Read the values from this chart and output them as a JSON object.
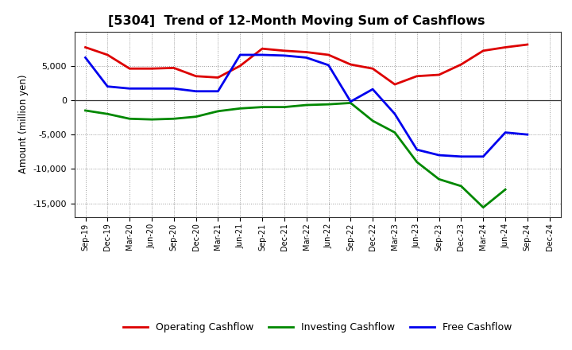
{
  "title": "[5304]  Trend of 12-Month Moving Sum of Cashflows",
  "ylabel": "Amount (million yen)",
  "background_color": "#ffffff",
  "x_labels": [
    "Sep-19",
    "Dec-19",
    "Mar-20",
    "Jun-20",
    "Sep-20",
    "Dec-20",
    "Mar-21",
    "Jun-21",
    "Sep-21",
    "Dec-21",
    "Mar-22",
    "Jun-22",
    "Sep-22",
    "Dec-22",
    "Mar-23",
    "Jun-23",
    "Sep-23",
    "Dec-23",
    "Mar-24",
    "Jun-24",
    "Sep-24",
    "Dec-24"
  ],
  "operating": [
    7700,
    6600,
    4600,
    4600,
    4700,
    3500,
    3300,
    5000,
    7500,
    7200,
    7000,
    6600,
    5200,
    4600,
    2300,
    3500,
    3700,
    5200,
    7200,
    7700,
    8100,
    null
  ],
  "investing": [
    -1500,
    -2000,
    -2700,
    -2800,
    -2700,
    -2400,
    -1600,
    -1200,
    -1000,
    -1000,
    -700,
    -600,
    -400,
    -3000,
    -4700,
    -9000,
    -11500,
    -12500,
    -15600,
    -13000,
    null,
    null
  ],
  "free": [
    6200,
    2000,
    1700,
    1700,
    1700,
    1300,
    1300,
    6600,
    6600,
    6500,
    6200,
    5100,
    -200,
    1600,
    -2000,
    -7200,
    -8000,
    -8200,
    -8200,
    -4700,
    -5000,
    null
  ],
  "ylim": [
    -17000,
    10000
  ],
  "yticks": [
    -15000,
    -10000,
    -5000,
    0,
    5000
  ],
  "line_colors": {
    "operating": "#dd0000",
    "investing": "#008800",
    "free": "#0000ee"
  },
  "line_width": 2.0,
  "legend_labels": [
    "Operating Cashflow",
    "Investing Cashflow",
    "Free Cashflow"
  ]
}
